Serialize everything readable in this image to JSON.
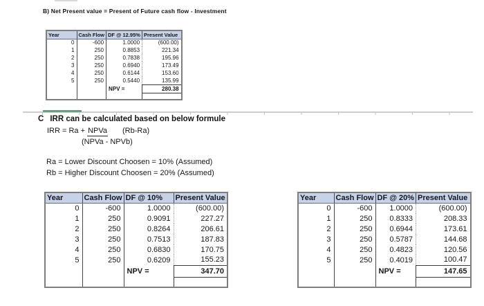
{
  "colors": {
    "table_header_bg": "#c7d2e6",
    "table_outer_border": "#7e7e7e",
    "divider_gray": "#cdcdcd",
    "divider_green": "#6f9c86"
  },
  "section_b": {
    "heading": "B) Net Present value = Present of Future cash flow - Investment"
  },
  "section_c": {
    "label": "C",
    "heading": "IRR can be calculated based on below formule",
    "formula_lhs": "IRR = Ra +",
    "formula_numerator": "NPVa",
    "formula_factor": "(Rb-Ra)",
    "formula_denominator": "(NPVa - NPVb)",
    "ra_line": "Ra = Lower Discount Choosen = 10% (Assumed)",
    "rb_line": "Rb = Higher Discount Choosen = 20% (Assumed)"
  },
  "tables": [
    {
      "name": "npv-at-12.95-percent",
      "headers": [
        "Year",
        "Cash Flow",
        "DF @ 12.95%",
        "Present Value"
      ],
      "rows": [
        [
          "0",
          "-600",
          "1.0000",
          "(600.00)"
        ],
        [
          "1",
          "250",
          "0.8853",
          "221.34"
        ],
        [
          "2",
          "250",
          "0.7838",
          "195.96"
        ],
        [
          "3",
          "250",
          "0.6940",
          "173.49"
        ],
        [
          "4",
          "250",
          "0.6144",
          "153.60"
        ],
        [
          "5",
          "250",
          "0.5440",
          "135.99"
        ]
      ],
      "npv_label": "NPV =",
      "npv_value": "280.38"
    },
    {
      "name": "npv-at-10-percent",
      "headers": [
        "Year",
        "Cash Flow",
        "DF @ 10%",
        "Present Value"
      ],
      "rows": [
        [
          "0",
          "-600",
          "1.0000",
          "(600.00)"
        ],
        [
          "1",
          "250",
          "0.9091",
          "227.27"
        ],
        [
          "2",
          "250",
          "0.8264",
          "206.61"
        ],
        [
          "3",
          "250",
          "0.7513",
          "187.83"
        ],
        [
          "4",
          "250",
          "0.6830",
          "170.75"
        ],
        [
          "5",
          "250",
          "0.6209",
          "155.23"
        ]
      ],
      "npv_label": "NPV =",
      "npv_value": "347.70"
    },
    {
      "name": "npv-at-20-percent",
      "headers": [
        "Year",
        "Cash Flow",
        "DF @ 20%",
        "Present Value"
      ],
      "rows": [
        [
          "0",
          "-600",
          "1.0000",
          "(600.00)"
        ],
        [
          "1",
          "250",
          "0.8333",
          "208.33"
        ],
        [
          "2",
          "250",
          "0.6944",
          "173.61"
        ],
        [
          "3",
          "250",
          "0.5787",
          "144.68"
        ],
        [
          "4",
          "250",
          "0.4823",
          "120.56"
        ],
        [
          "5",
          "250",
          "0.4019",
          "100.47"
        ]
      ],
      "npv_label": "NPV =",
      "npv_value": "147.65"
    }
  ]
}
